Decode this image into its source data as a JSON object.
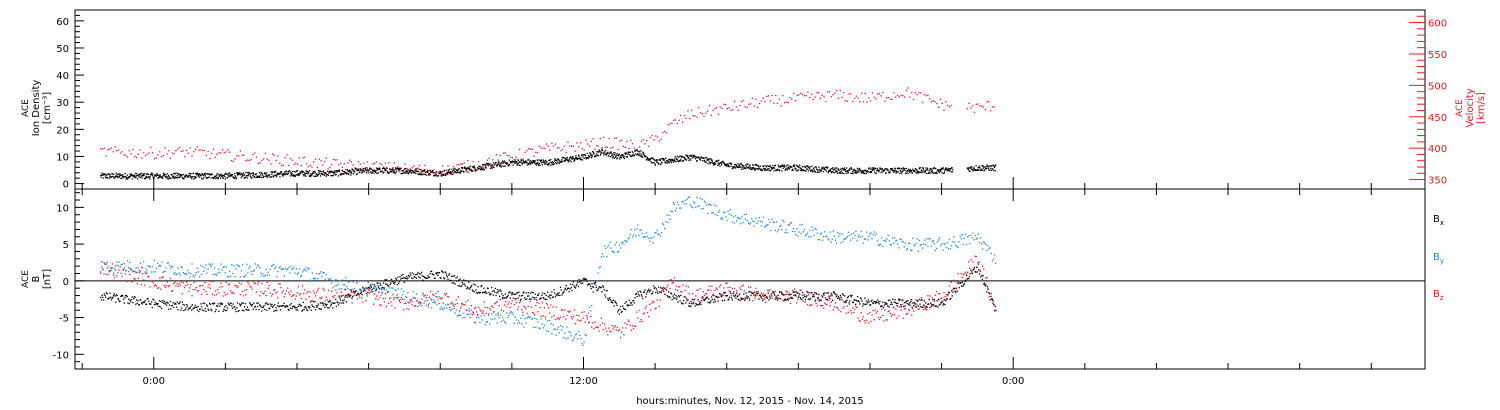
{
  "chart_data": [
    {
      "type": "scatter",
      "panel": "top",
      "ylabel_lines": [
        "ACE",
        "Ion Density",
        "[cm⁻³]"
      ],
      "y2label_lines": [
        "ACE",
        "Velocity",
        "[km/s]"
      ],
      "ylim": [
        -2,
        64
      ],
      "y2lim": [
        335,
        620
      ],
      "yticks": [
        0,
        10,
        20,
        30,
        40,
        50,
        60
      ],
      "yticklabels": [
        "0",
        "10",
        "20",
        "30",
        "40",
        "50",
        "60"
      ],
      "y2ticks": [
        350,
        400,
        450,
        500,
        550,
        600
      ],
      "y2ticklabels": [
        "350",
        "400",
        "450",
        "500",
        "550",
        "600"
      ],
      "series": [
        {
          "color": "#000000",
          "axis": "left",
          "x": [
            -1.5,
            0,
            1,
            2,
            3,
            4,
            5,
            6,
            7,
            8,
            9,
            10,
            11,
            12,
            12.5,
            13,
            13.5,
            14,
            14.5,
            15,
            16,
            17,
            18,
            19,
            20,
            21,
            22,
            23,
            23.5
          ],
          "y": [
            3,
            3,
            3,
            3,
            3.5,
            4,
            4,
            5,
            5,
            4,
            6,
            8,
            8,
            10,
            12,
            10,
            12,
            8,
            9,
            10,
            7,
            6,
            6,
            5,
            5,
            5,
            5,
            6,
            6
          ]
        },
        {
          "color": "#e8191e",
          "axis": "right",
          "x": [
            -1.5,
            0,
            1,
            2,
            3,
            4,
            5,
            6,
            7,
            8,
            9,
            10,
            11,
            12,
            12.5,
            13,
            13.5,
            14,
            14.5,
            15,
            16,
            17,
            18,
            19,
            20,
            21,
            22,
            23,
            23.5
          ],
          "y": [
            395,
            393,
            395,
            390,
            385,
            380,
            375,
            372,
            368,
            365,
            375,
            388,
            400,
            405,
            410,
            408,
            403,
            415,
            440,
            455,
            465,
            475,
            480,
            485,
            480,
            490,
            470,
            465,
            470
          ]
        }
      ]
    },
    {
      "type": "scatter",
      "panel": "bottom",
      "ylabel_lines": [
        "ACE",
        "B",
        "[nT]"
      ],
      "ylim": [
        -12,
        12.5
      ],
      "yticks": [
        -10,
        -5,
        0,
        5,
        10
      ],
      "yticklabels": [
        "-10",
        "-5",
        "0",
        "5",
        "10"
      ],
      "xlabel": "hours:minutes, Nov. 12, 2015 - Nov. 14, 2015",
      "xlim": [
        -2.2,
        35.5
      ],
      "xticks": [
        0,
        12,
        24
      ],
      "xticklabels": [
        "0:00",
        "12:00",
        "0:00"
      ],
      "legend": [
        {
          "label": "B",
          "sub": "x",
          "color": "#000000"
        },
        {
          "label": "B",
          "sub": "y",
          "color": "#1e88e5"
        },
        {
          "label": "B",
          "sub": "z",
          "color": "#e8191e"
        }
      ],
      "series": [
        {
          "color": "#000000",
          "x": [
            -1.5,
            0,
            1,
            2,
            3,
            4,
            5,
            6,
            7,
            8,
            9,
            10,
            11,
            12,
            12.5,
            13,
            13.5,
            14,
            14.5,
            15,
            16,
            17,
            18,
            19,
            20,
            21,
            22,
            23,
            23.5
          ],
          "y": [
            -2,
            -3,
            -3.5,
            -3.5,
            -3.5,
            -3.5,
            -3,
            -1,
            0.5,
            1,
            -1,
            -2,
            -2,
            0,
            -1,
            -4,
            -2,
            -1,
            -2,
            -3,
            -2,
            -2,
            -2,
            -2,
            -3,
            -3,
            -3,
            2,
            -4
          ]
        },
        {
          "color": "#1e88e5",
          "x": [
            -1.5,
            0,
            1,
            2,
            3,
            4,
            5,
            6,
            7,
            8,
            9,
            10,
            11,
            12,
            12.5,
            13,
            13.5,
            14,
            14.5,
            15,
            16,
            17,
            18,
            19,
            20,
            21,
            22,
            23,
            23.5
          ],
          "y": [
            2,
            2,
            1.5,
            1.5,
            1.5,
            1.5,
            0,
            -1,
            -2,
            -3,
            -5,
            -5,
            -6,
            -8,
            4,
            5,
            7,
            6,
            10,
            11,
            9,
            8,
            7,
            6,
            6,
            5,
            5,
            6,
            3
          ]
        },
        {
          "color": "#e8191e",
          "x": [
            -1.5,
            0,
            1,
            2,
            3,
            4,
            5,
            6,
            7,
            8,
            9,
            10,
            11,
            12,
            12.5,
            13,
            13.5,
            14,
            14.5,
            15,
            16,
            17,
            18,
            19,
            20,
            21,
            22,
            23,
            23.5
          ],
          "y": [
            2,
            0,
            -1,
            -1,
            -1,
            -1.5,
            -2,
            -2,
            -3,
            -2,
            -4,
            -3,
            -4,
            -5,
            -6,
            -7,
            -5,
            -3,
            0,
            -2,
            -1,
            -2,
            -2,
            -3,
            -5,
            -4,
            -2,
            3,
            -4
          ]
        }
      ]
    }
  ]
}
